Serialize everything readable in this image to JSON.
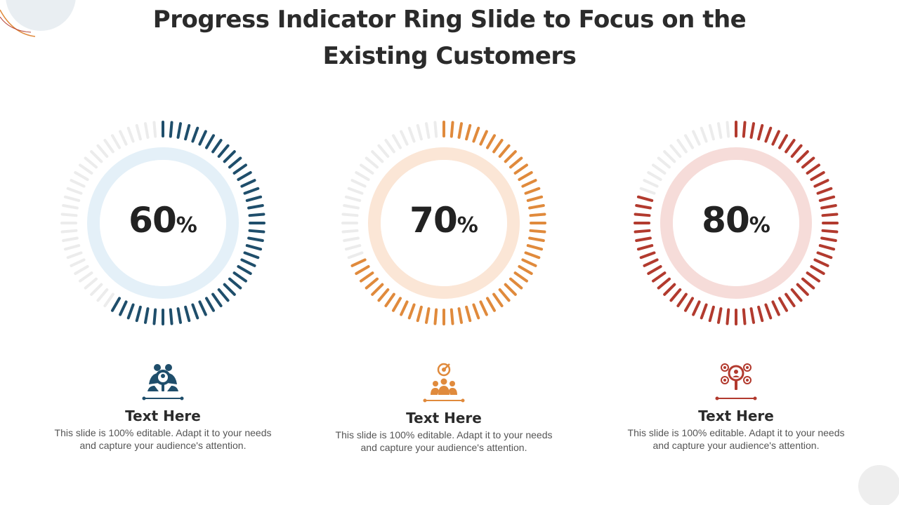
{
  "slide": {
    "title_line1": "Progress Indicator Ring Slide to Focus on the",
    "title_line2": "Existing Customers"
  },
  "rings": [
    {
      "value": "60",
      "unit": "%",
      "percent": 60,
      "color": "#1f4e6b",
      "inner_color": "#e4f0f8"
    },
    {
      "value": "70",
      "unit": "%",
      "percent": 70,
      "color": "#e08a3c",
      "inner_color": "#fbe6d6"
    },
    {
      "value": "80",
      "unit": "%",
      "percent": 80,
      "color": "#b23a2e",
      "inner_color": "#f6dcd9"
    }
  ],
  "cards": [
    {
      "icon": "search-people-icon",
      "title": "Text Here",
      "body": "This slide is 100% editable. Adapt it to your needs and capture your audience's attention."
    },
    {
      "icon": "target-team-icon",
      "title": "Text Here",
      "body": "This slide is 100% editable. Adapt it to your needs and capture your audience's attention."
    },
    {
      "icon": "network-search-icon",
      "title": "Text Here",
      "body": "This slide is 100% editable. Adapt it to your needs and capture your audience's attention."
    }
  ],
  "colors": {
    "track": "#ececec",
    "title": "#2b2b2b",
    "body_text": "#555555"
  }
}
